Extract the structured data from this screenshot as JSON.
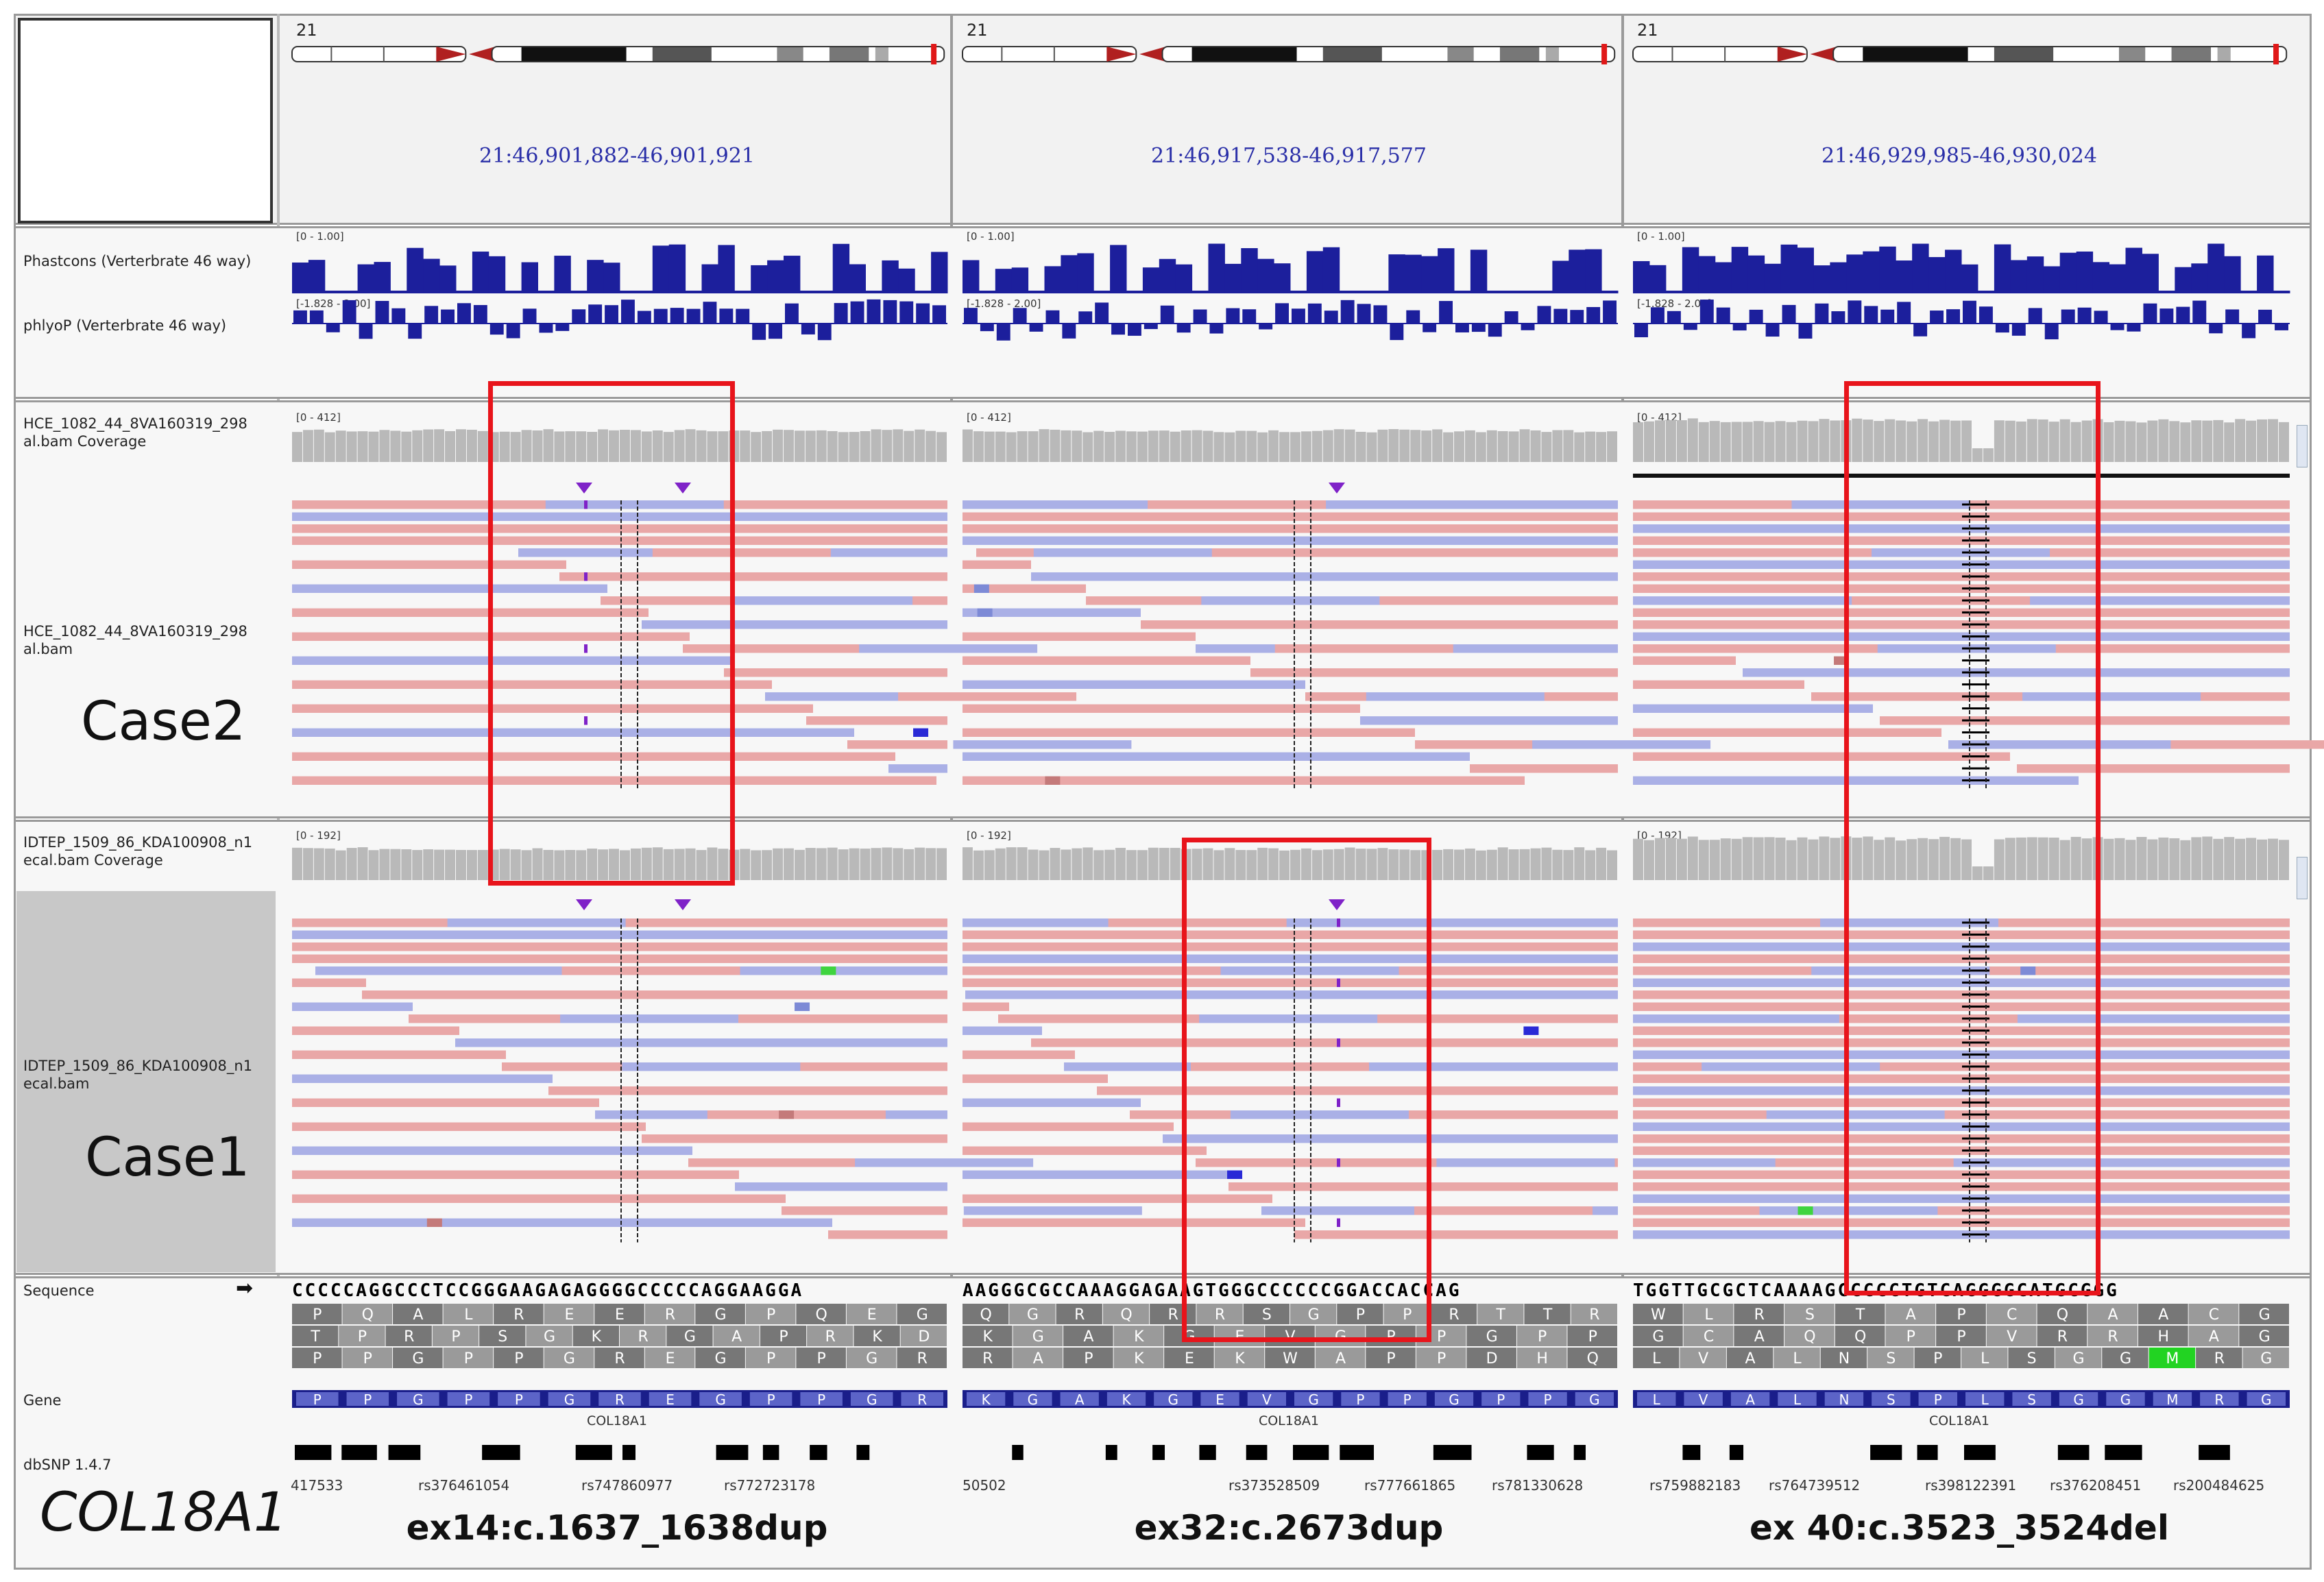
{
  "chromosome": "21",
  "loci": [
    "21:46,901,882-46,901,921",
    "21:46,917,538-46,917,577",
    "21:46,929,985-46,930,024"
  ],
  "conservation": {
    "phastcons_label": "Phastcons (Verterbrate 46 way)",
    "phylop_label": "phlyoP (Verterbrate 46 way)",
    "phastcons_range": "[0 - 1.00]",
    "phylop_range": "[-1.828 - 2.00]"
  },
  "case2": {
    "coverage_label": "HCE_1082_44_8VA160319_298 al.bam Coverage",
    "reads_label": "HCE_1082_44_8VA160319_298 al.bam",
    "coverage_range": "[0 - 412]",
    "case_label": "Case2"
  },
  "case1": {
    "coverage_label": "IDTEP_1509_86_KDA100908_n1 ecal.bam Coverage",
    "reads_label": "IDTEP_1509_86_KDA100908_n1 ecal.bam",
    "coverage_range": "[0 - 192]",
    "case_label": "Case1"
  },
  "sequence_label": "Sequence",
  "sequence_arrow": "➡",
  "gene_track_label": "Gene",
  "dbsnp_label": "dbSNP 1.4.7",
  "gene_symbol": "COL18A1",
  "columns": [
    {
      "sequence": "CCCCCAGGCCCTCCGGGAAGAGAGGGGCCCCCAGGAAGGA",
      "frame1": [
        "P",
        "Q",
        "A",
        "L",
        "R",
        "E",
        "E",
        "R",
        "G",
        "P",
        "Q",
        "E",
        "G"
      ],
      "frame2": [
        "T",
        "P",
        "R",
        "P",
        "S",
        "G",
        "K",
        "R",
        "G",
        "A",
        "P",
        "R",
        "K",
        "D"
      ],
      "frame3": [
        "P",
        "P",
        "G",
        "P",
        "P",
        "G",
        "R",
        "E",
        "G",
        "P",
        "P",
        "G",
        "R"
      ],
      "gene_aa": [
        "P",
        "P",
        "G",
        "P",
        "P",
        "G",
        "R",
        "E",
        "G",
        "P",
        "P",
        "G",
        "R"
      ],
      "gene_name": "COL18A1",
      "rsids": [
        "417533",
        "rs376461054",
        "rs747860977",
        "rs772723178"
      ],
      "variant": "ex14:c.1637_1638dup"
    },
    {
      "sequence": "AAGGGCGCCAAAGGAGAAGTGGGCCCCCCGGACCACCAG",
      "frame1": [
        "Q",
        "G",
        "R",
        "Q",
        "R",
        "R",
        "S",
        "G",
        "P",
        "P",
        "R",
        "T",
        "T",
        "R"
      ],
      "frame2": [
        "K",
        "G",
        "A",
        "K",
        "G",
        "E",
        "V",
        "G",
        "P",
        "P",
        "G",
        "P",
        "P"
      ],
      "frame3": [
        "R",
        "A",
        "P",
        "K",
        "E",
        "K",
        "W",
        "A",
        "P",
        "P",
        "D",
        "H",
        "Q"
      ],
      "gene_aa": [
        "K",
        "G",
        "A",
        "K",
        "G",
        "E",
        "V",
        "G",
        "P",
        "P",
        "G",
        "P",
        "P",
        "G"
      ],
      "gene_name": "COL18A1",
      "rsids": [
        "50502",
        "rs373528509",
        "rs777661865",
        "rs781330628"
      ],
      "variant": "ex32:c.2673dup"
    },
    {
      "sequence": "TGGTTGCGCTCAAAAGCCCCCTGTCAGGGGCATGCGGG",
      "frame1": [
        "W",
        "L",
        "R",
        "S",
        "T",
        "A",
        "P",
        "C",
        "Q",
        "A",
        "A",
        "C",
        "G"
      ],
      "frame2": [
        "G",
        "C",
        "A",
        "Q",
        "Q",
        "P",
        "P",
        "V",
        "R",
        "R",
        "H",
        "A",
        "G"
      ],
      "frame3": [
        "L",
        "V",
        "A",
        "L",
        "N",
        "S",
        "P",
        "L",
        "S",
        "G",
        "G",
        "M",
        "R",
        "G"
      ],
      "gene_aa": [
        "L",
        "V",
        "A",
        "L",
        "N",
        "S",
        "P",
        "L",
        "S",
        "G",
        "G",
        "M",
        "R",
        "G"
      ],
      "gene_name": "COL18A1",
      "rsids": [
        "rs759882183",
        "rs764739512",
        "rs398122391",
        "rs376208451",
        "rs200484625"
      ],
      "variant": "ex 40:c.3523_3524del"
    }
  ],
  "colors": {
    "read_forward": "#e9a7a7",
    "read_reverse": "#aab0e6",
    "conservation": "#1c1f9c",
    "coverage": "#b9b9b9",
    "highlight_box": "#e8141b",
    "insertion": "#7f22c8"
  }
}
